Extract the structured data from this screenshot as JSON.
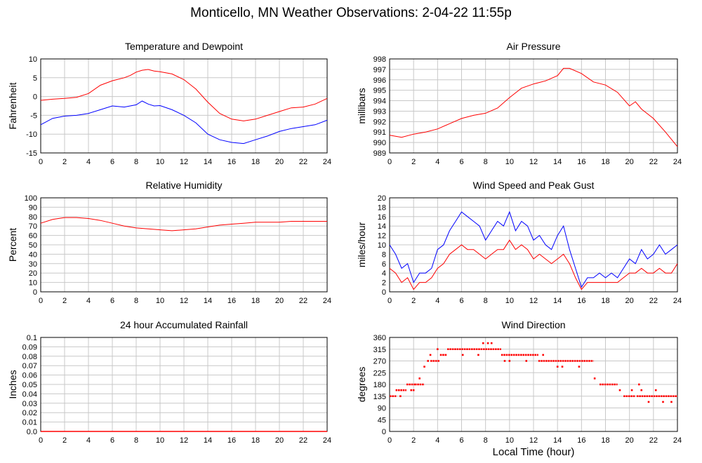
{
  "title": "Monticello, MN Weather Observations: 2-04-22 11:55p",
  "xlabel": "Local Time (hour)",
  "chart_data": [
    {
      "type": "line",
      "title": "Temperature and Dewpoint",
      "ylabel": "Fahrenheit",
      "xlim": [
        0,
        24
      ],
      "ylim": [
        -15,
        10
      ],
      "x_ticks": [
        0,
        2,
        4,
        6,
        8,
        10,
        12,
        14,
        16,
        18,
        20,
        22,
        24
      ],
      "y_ticks": [
        -15,
        -10,
        -5,
        0,
        5,
        10
      ],
      "grid": true,
      "x": [
        0,
        1,
        2,
        3,
        4,
        5,
        6,
        7,
        7.5,
        8,
        8.5,
        9,
        9.5,
        10,
        11,
        12,
        13,
        14,
        15,
        16,
        17,
        18,
        19,
        20,
        21,
        22,
        23,
        24
      ],
      "series": [
        {
          "color": "#ff0000",
          "values": [
            -1,
            -0.7,
            -0.5,
            -0.2,
            0.8,
            3,
            4.2,
            5,
            5.6,
            6.5,
            7,
            7.2,
            6.8,
            6.6,
            6,
            4.5,
            2,
            -1.5,
            -4.5,
            -6,
            -6.5,
            -6,
            -5,
            -4,
            -3,
            -2.8,
            -2,
            -0.5
          ]
        },
        {
          "color": "#0000ff",
          "values": [
            -7.5,
            -5.8,
            -5.2,
            -5,
            -4.5,
            -3.5,
            -2.5,
            -2.8,
            -2.5,
            -2.2,
            -1.2,
            -2,
            -2.5,
            -2.4,
            -3.5,
            -5,
            -7,
            -10,
            -11.5,
            -12.2,
            -12.5,
            -11.5,
            -10.5,
            -9.3,
            -8.5,
            -8,
            -7.5,
            -6.3
          ]
        }
      ]
    },
    {
      "type": "line",
      "title": "Air Pressure",
      "ylabel": "millibars",
      "xlim": [
        0,
        24
      ],
      "ylim": [
        989,
        998
      ],
      "x_ticks": [
        0,
        2,
        4,
        6,
        8,
        10,
        12,
        14,
        16,
        18,
        20,
        22,
        24
      ],
      "y_ticks": [
        989,
        990,
        991,
        992,
        993,
        994,
        995,
        996,
        997,
        998
      ],
      "grid": true,
      "x": [
        0,
        1,
        2,
        3,
        4,
        5,
        6,
        7,
        8,
        9,
        10,
        11,
        12,
        13,
        14,
        14.5,
        15,
        16,
        17,
        18,
        19,
        20,
        20.5,
        21,
        22,
        23,
        24
      ],
      "series": [
        {
          "color": "#ff0000",
          "values": [
            990.7,
            990.5,
            990.8,
            991,
            991.3,
            991.8,
            992.3,
            992.6,
            992.8,
            993.3,
            994.3,
            995.2,
            995.6,
            995.9,
            996.4,
            997.1,
            997.1,
            996.6,
            995.8,
            995.5,
            994.8,
            993.5,
            993.9,
            993.2,
            992.3,
            991,
            989.6
          ]
        }
      ]
    },
    {
      "type": "line",
      "title": "Relative Humidity",
      "ylabel": "Percent",
      "xlim": [
        0,
        24
      ],
      "ylim": [
        0,
        100
      ],
      "x_ticks": [
        0,
        2,
        4,
        6,
        8,
        10,
        12,
        14,
        16,
        18,
        20,
        22,
        24
      ],
      "y_ticks": [
        0,
        10,
        20,
        30,
        40,
        50,
        60,
        70,
        80,
        90,
        100
      ],
      "grid": true,
      "x": [
        0,
        1,
        2,
        3,
        4,
        5,
        6,
        7,
        8,
        9,
        10,
        11,
        12,
        13,
        14,
        15,
        16,
        17,
        18,
        19,
        20,
        21,
        22,
        23,
        24
      ],
      "series": [
        {
          "color": "#ff0000",
          "values": [
            73,
            77,
            79,
            79,
            78,
            76,
            73,
            70,
            68,
            67,
            66,
            65,
            66,
            67,
            69,
            71,
            72,
            73,
            74,
            74,
            74,
            75,
            75,
            75,
            75
          ]
        }
      ]
    },
    {
      "type": "line",
      "title": "Wind Speed and Peak Gust",
      "ylabel": "miles/hour",
      "xlim": [
        0,
        24
      ],
      "ylim": [
        0,
        20
      ],
      "x_ticks": [
        0,
        2,
        4,
        6,
        8,
        10,
        12,
        14,
        16,
        18,
        20,
        22,
        24
      ],
      "y_ticks": [
        0,
        2,
        4,
        6,
        8,
        10,
        12,
        14,
        16,
        18,
        20
      ],
      "grid": true,
      "x": [
        0,
        0.5,
        1,
        1.5,
        2,
        2.5,
        3,
        3.5,
        4,
        4.5,
        5,
        5.5,
        6,
        6.5,
        7,
        7.5,
        8,
        8.5,
        9,
        9.5,
        10,
        10.5,
        11,
        11.5,
        12,
        12.5,
        13,
        13.5,
        14,
        14.5,
        15,
        15.5,
        16,
        16.5,
        17,
        17.5,
        18,
        18.5,
        19,
        19.5,
        20,
        20.5,
        21,
        21.5,
        22,
        22.5,
        23,
        23.5,
        24
      ],
      "series": [
        {
          "color": "#0000ff",
          "values": [
            10,
            8,
            5,
            6,
            2,
            4,
            4,
            5,
            9,
            10,
            13,
            15,
            17,
            16,
            15,
            14,
            11,
            13,
            15,
            14,
            17,
            13,
            15,
            14,
            11,
            12,
            10,
            9,
            12,
            14,
            9,
            5,
            1,
            3,
            3,
            4,
            3,
            4,
            3,
            5,
            7,
            6,
            9,
            7,
            8,
            10,
            8,
            9,
            10
          ]
        },
        {
          "color": "#ff0000",
          "values": [
            5,
            4,
            2,
            3,
            0.5,
            2,
            2,
            3,
            5,
            6,
            8,
            9,
            10,
            9,
            9,
            8,
            7,
            8,
            9,
            9,
            11,
            9,
            10,
            9,
            7,
            8,
            7,
            6,
            7,
            8,
            6,
            3,
            0.5,
            2,
            2,
            2,
            2,
            2,
            2,
            3,
            4,
            4,
            5,
            4,
            4,
            5,
            4,
            4,
            6
          ]
        }
      ]
    },
    {
      "type": "line",
      "title": "24 hour Accumulated Rainfall",
      "ylabel": "Inches",
      "xlim": [
        0,
        24
      ],
      "ylim": [
        0,
        0.1
      ],
      "x_ticks": [
        0,
        2,
        4,
        6,
        8,
        10,
        12,
        14,
        16,
        18,
        20,
        22,
        24
      ],
      "y_ticks": [
        0,
        0.01,
        0.02,
        0.03,
        0.04,
        0.05,
        0.06,
        0.07,
        0.08,
        0.09,
        0.1
      ],
      "y_tick_labels": [
        "0.0",
        "0.01",
        "0.02",
        "0.03",
        "0.04",
        "0.05",
        "0.06",
        "0.07",
        "0.08",
        "0.09",
        "0.1"
      ],
      "grid": true,
      "x": [
        0,
        24
      ],
      "series": [
        {
          "color": "#ff0000",
          "values": [
            0,
            0
          ]
        }
      ]
    },
    {
      "type": "scatter",
      "title": "Wind Direction",
      "ylabel": "degrees",
      "xlim": [
        0,
        24
      ],
      "ylim": [
        0,
        360
      ],
      "x_ticks": [
        0,
        2,
        4,
        6,
        8,
        10,
        12,
        14,
        16,
        18,
        20,
        22,
        24
      ],
      "y_ticks": [
        0,
        45,
        90,
        135,
        180,
        225,
        270,
        315,
        360
      ],
      "grid": true,
      "segments": [
        {
          "x0": 0,
          "x1": 0.6,
          "y": 135
        },
        {
          "x0": 0.5,
          "x1": 1.4,
          "y": 158
        },
        {
          "x0": 1.4,
          "x1": 2.1,
          "y": 180
        },
        {
          "x0": 2.1,
          "x1": 2.9,
          "y": 180
        },
        {
          "x0": 3.4,
          "x1": 4.2,
          "y": 270
        },
        {
          "x0": 4.2,
          "x1": 4.8,
          "y": 293
        },
        {
          "x0": 4.8,
          "x1": 9.3,
          "y": 315
        },
        {
          "x0": 9.3,
          "x1": 12.4,
          "y": 293
        },
        {
          "x0": 12.4,
          "x1": 17.0,
          "y": 270
        },
        {
          "x0": 17.5,
          "x1": 19.0,
          "y": 180
        },
        {
          "x0": 19.5,
          "x1": 20.5,
          "y": 135
        },
        {
          "x0": 20.6,
          "x1": 24,
          "y": 135
        }
      ],
      "points": [
        {
          "x": 0.9,
          "y": 135
        },
        {
          "x": 1.8,
          "y": 158
        },
        {
          "x": 2.0,
          "y": 158
        },
        {
          "x": 2.5,
          "y": 203
        },
        {
          "x": 2.9,
          "y": 248
        },
        {
          "x": 3.2,
          "y": 270
        },
        {
          "x": 3.4,
          "y": 293
        },
        {
          "x": 4.0,
          "y": 315
        },
        {
          "x": 6.1,
          "y": 293
        },
        {
          "x": 7.4,
          "y": 293
        },
        {
          "x": 7.8,
          "y": 338
        },
        {
          "x": 8.2,
          "y": 338
        },
        {
          "x": 8.5,
          "y": 338
        },
        {
          "x": 9.6,
          "y": 270
        },
        {
          "x": 10.0,
          "y": 270
        },
        {
          "x": 11.4,
          "y": 270
        },
        {
          "x": 12.8,
          "y": 293
        },
        {
          "x": 14.0,
          "y": 248
        },
        {
          "x": 14.4,
          "y": 248
        },
        {
          "x": 15.8,
          "y": 248
        },
        {
          "x": 17.1,
          "y": 203
        },
        {
          "x": 19.2,
          "y": 158
        },
        {
          "x": 20.2,
          "y": 158
        },
        {
          "x": 20.8,
          "y": 180
        },
        {
          "x": 21.0,
          "y": 158
        },
        {
          "x": 21.6,
          "y": 113
        },
        {
          "x": 22.2,
          "y": 158
        },
        {
          "x": 22.8,
          "y": 113
        },
        {
          "x": 23.5,
          "y": 113
        }
      ],
      "color": "#ff0000"
    }
  ]
}
